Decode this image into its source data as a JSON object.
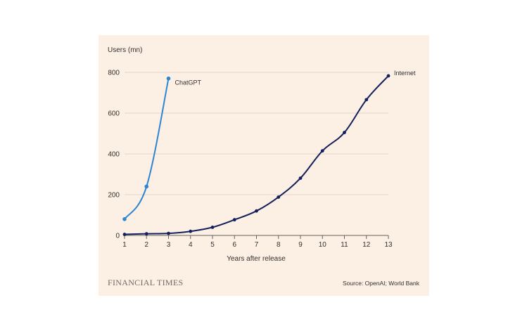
{
  "chart_data": {
    "type": "line",
    "ylabel": "Users (mn)",
    "xlabel": "Years after release",
    "ylim": [
      0,
      800
    ],
    "yticks": [
      "0",
      "200",
      "400",
      "600",
      "800"
    ],
    "xlim": [
      1,
      13
    ],
    "xticks": [
      "1",
      "2",
      "3",
      "4",
      "5",
      "6",
      "7",
      "8",
      "9",
      "10",
      "11",
      "12",
      "13"
    ],
    "grid": true,
    "series": [
      {
        "name": "ChatGPT",
        "color": "#2e86d1",
        "x": [
          1,
          2,
          3
        ],
        "y": [
          80,
          240,
          770
        ]
      },
      {
        "name": "Internet",
        "color": "#14205c",
        "x": [
          1,
          2,
          3,
          4,
          5,
          6,
          7,
          8,
          9,
          10,
          11,
          12,
          13
        ],
        "y": [
          5,
          8,
          10,
          20,
          40,
          77,
          120,
          188,
          281,
          415,
          505,
          666,
          783
        ]
      }
    ]
  },
  "footer": {
    "brand": "FINANCIAL TIMES",
    "source": "Source: OpenAI; World Bank"
  }
}
